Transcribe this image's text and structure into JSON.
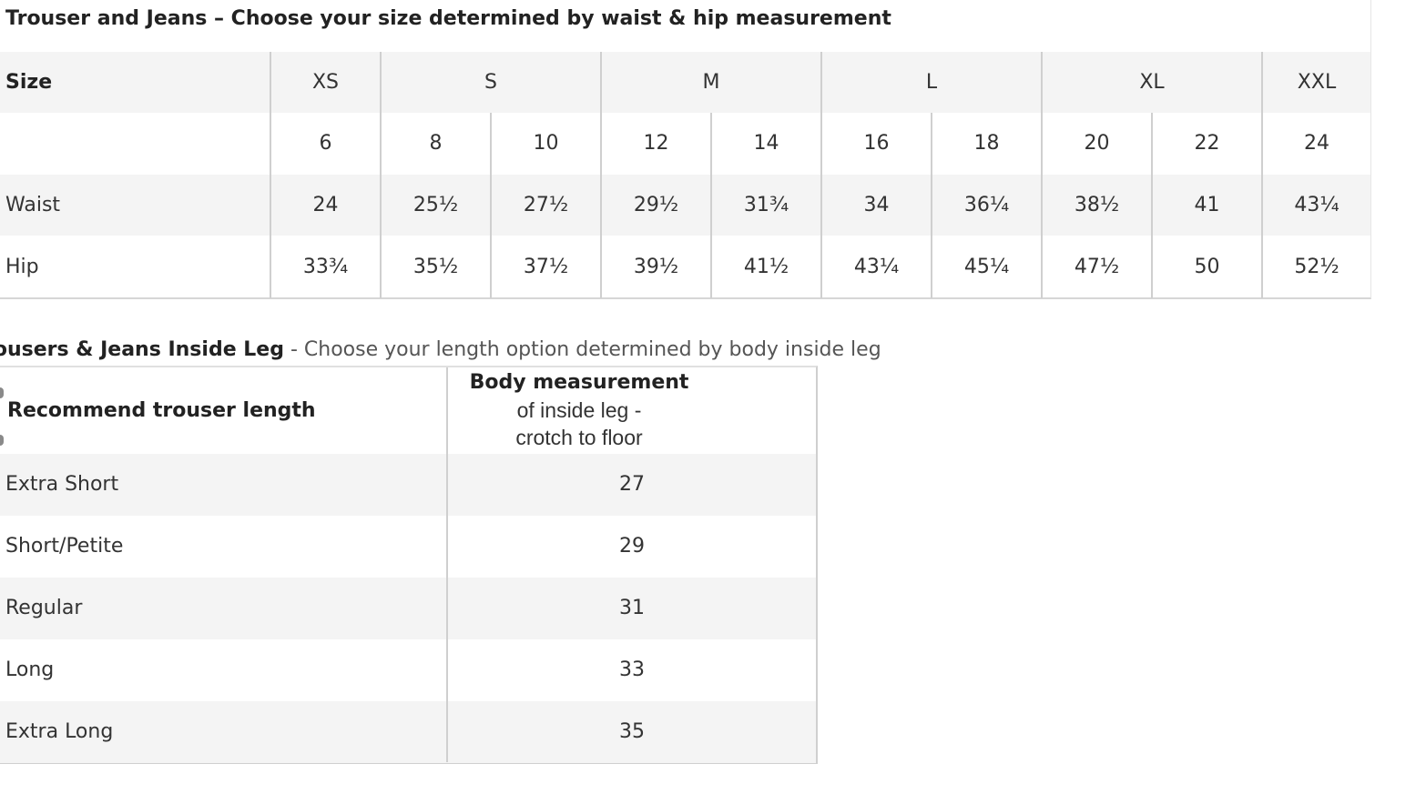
{
  "size_table": {
    "title": "Trouser and Jeans – Choose your size determined by waist & hip measurement",
    "size_label": "Size",
    "sizes": [
      {
        "label": "XS",
        "span": 1
      },
      {
        "label": "S",
        "span": 2
      },
      {
        "label": "M",
        "span": 2
      },
      {
        "label": "L",
        "span": 2
      },
      {
        "label": "XL",
        "span": 2
      },
      {
        "label": "XXL",
        "span": 1
      }
    ],
    "numeric_sizes": [
      "6",
      "8",
      "10",
      "12",
      "14",
      "16",
      "18",
      "20",
      "22",
      "24"
    ],
    "waist": {
      "label": "Waist",
      "values": [
        "24",
        "25½",
        "27½",
        "29½",
        "31¾",
        "34",
        "36¼",
        "38½",
        "41",
        "43¼"
      ]
    },
    "hip": {
      "label": "Hip",
      "values": [
        "33¾",
        "35½",
        "37½",
        "39½",
        "41½",
        "43¼",
        "45¼",
        "47½",
        "50",
        "52½"
      ]
    }
  },
  "leg_table": {
    "title_bold": "rousers & Jeans Inside Leg",
    "title_rest": " - Choose your length option determined by body inside leg",
    "header_left": "Recommend trouser length",
    "header_right_line1": "Body measurement",
    "header_right_line2": "of inside leg -",
    "header_right_line3": "crotch to floor",
    "rows": [
      {
        "name": "Extra Short",
        "value": "27"
      },
      {
        "name": "Short/Petite",
        "value": "29"
      },
      {
        "name": "Regular",
        "value": "31"
      },
      {
        "name": "Long",
        "value": "33"
      },
      {
        "name": "Extra Long",
        "value": "35"
      }
    ]
  }
}
